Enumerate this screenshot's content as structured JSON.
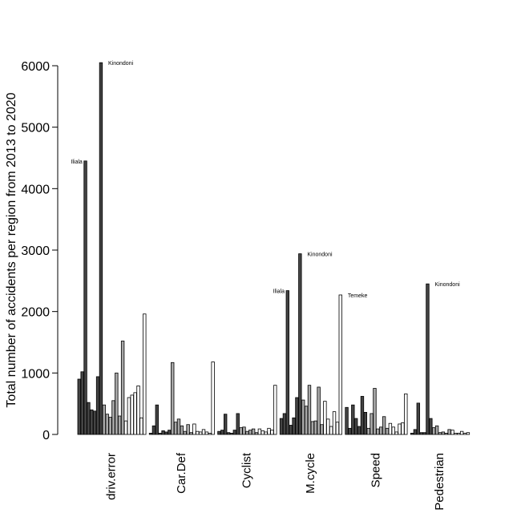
{
  "chart_data": {
    "type": "bar",
    "title": "",
    "xlabel": "",
    "ylabel": "Total number of accidents per region from 2013 to 2020",
    "ylim": [
      0,
      6000
    ],
    "yticks": [
      0,
      1000,
      2000,
      3000,
      4000,
      5000,
      6000
    ],
    "grid": false,
    "legend": "none",
    "colors": {
      "dark": "#444444",
      "mid": "#a8a8a8",
      "light": "#ffffff",
      "stroke": "#000000"
    },
    "groups": [
      {
        "name": "driv.error",
        "values": [
          900,
          1020,
          4450,
          520,
          400,
          380,
          940,
          6050,
          480,
          330,
          280,
          550,
          1000,
          300,
          1520,
          220,
          600,
          640,
          680,
          790,
          270,
          1960
        ]
      },
      {
        "name": "Car.Def",
        "values": [
          20,
          140,
          480,
          20,
          60,
          40,
          70,
          1170,
          200,
          250,
          140,
          50,
          160,
          30,
          170,
          50,
          40,
          80,
          40,
          20,
          1180
        ]
      },
      {
        "name": "Cyclist",
        "values": [
          50,
          70,
          330,
          30,
          20,
          70,
          340,
          110,
          120,
          50,
          70,
          90,
          30,
          90,
          60,
          40,
          100,
          70,
          800
        ]
      },
      {
        "name": "M.cycle",
        "values": [
          260,
          340,
          2340,
          150,
          270,
          600,
          2940,
          560,
          460,
          800,
          210,
          220,
          770,
          160,
          540,
          250,
          130,
          370,
          200,
          2270
        ]
      },
      {
        "name": "Speed",
        "values": [
          440,
          100,
          480,
          260,
          130,
          620,
          360,
          100,
          340,
          750,
          90,
          120,
          290,
          100,
          180,
          120,
          40,
          170,
          190,
          660
        ]
      },
      {
        "name": "Pedestrian",
        "values": [
          20,
          80,
          510,
          30,
          30,
          2450,
          260,
          110,
          140,
          30,
          40,
          20,
          80,
          70,
          20,
          20,
          50,
          20,
          30
        ]
      }
    ],
    "annotations": [
      {
        "text": "Iliala",
        "group": 0,
        "bar": 2,
        "side": "left"
      },
      {
        "text": "Kinondoni",
        "group": 0,
        "bar": 7,
        "side": "right"
      },
      {
        "text": "Iliala",
        "group": 3,
        "bar": 2,
        "side": "left"
      },
      {
        "text": "Kinondoni",
        "group": 3,
        "bar": 6,
        "side": "right"
      },
      {
        "text": "Temeke",
        "group": 3,
        "bar": 19,
        "side": "right"
      },
      {
        "text": "Kinondoni",
        "group": 5,
        "bar": 5,
        "side": "right"
      }
    ]
  }
}
